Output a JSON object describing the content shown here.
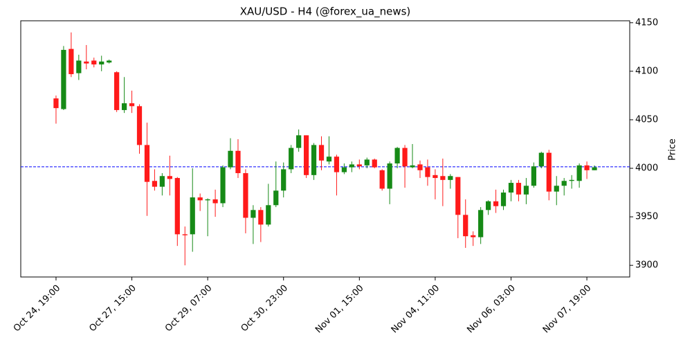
{
  "chart_data": {
    "type": "candlestick",
    "title": "XAU/USD - H4 (@forex_ua_news)",
    "y_label": "Price",
    "categories": [
      "Oct 24, 19:00",
      null,
      null,
      null,
      null,
      null,
      null,
      null,
      null,
      null,
      "Oct 27, 15:00",
      null,
      null,
      null,
      null,
      null,
      null,
      null,
      null,
      null,
      "Oct 29, 07:00",
      null,
      null,
      null,
      null,
      null,
      null,
      null,
      null,
      null,
      "Oct 30, 23:00",
      null,
      null,
      null,
      null,
      null,
      null,
      null,
      null,
      null,
      "Nov 01, 15:00",
      null,
      null,
      null,
      null,
      null,
      null,
      null,
      null,
      null,
      "Nov 04, 11:00",
      null,
      null,
      null,
      null,
      null,
      null,
      null,
      null,
      null,
      "Nov 06, 03:00",
      null,
      null,
      null,
      null,
      null,
      null,
      null,
      null,
      null,
      "Nov 07, 19:00",
      null
    ],
    "open": [
      4072,
      4061,
      4123,
      4098,
      4110,
      4111,
      4107,
      4109,
      4099,
      4060,
      4067,
      4064,
      4024,
      3987,
      3981,
      3992,
      3990,
      3932,
      3932,
      3970,
      3967,
      3968,
      3964,
      4001,
      4018,
      3995,
      3949,
      3957,
      3942,
      3962,
      3977,
      3999,
      4021,
      4034,
      3993,
      4024,
      4007,
      4012,
      3996,
      4001,
      4004,
      4003,
      4009,
      3998,
      3979,
      4005,
      4021,
      4001,
      4004,
      4001,
      3993,
      3992,
      3988,
      3991,
      3952,
      3931,
      3929,
      3957,
      3966,
      3961,
      3975,
      3985,
      3973,
      3982,
      4002,
      4016,
      3976,
      3982,
      3987,
      3987,
      4003,
      3998
    ],
    "high": [
      4075,
      4126,
      4140,
      4117,
      4127,
      4114,
      4116,
      4112,
      4100,
      4094,
      4080,
      4066,
      4047,
      3999,
      3995,
      4013,
      3991,
      3940,
      4000,
      3974,
      3969,
      3978,
      4003,
      4031,
      4030,
      3999,
      3962,
      3960,
      3984,
      4007,
      4006,
      4024,
      4040,
      4034,
      4026,
      4033,
      4033,
      4014,
      4005,
      4007,
      4009,
      4011,
      4010,
      3999,
      4007,
      4022,
      4024,
      4025,
      4008,
      4009,
      3999,
      4010,
      3994,
      3991,
      3968,
      3935,
      3960,
      3967,
      3978,
      3978,
      3988,
      3988,
      3990,
      4006,
      4017,
      4019,
      3992,
      3990,
      3993,
      4005,
      4007,
      4003
    ],
    "low": [
      4046,
      4060,
      4094,
      4091,
      4102,
      4104,
      4100,
      4108,
      4058,
      4057,
      4057,
      4015,
      3951,
      3977,
      3972,
      3972,
      3920,
      3900,
      3914,
      3956,
      3930,
      3950,
      3960,
      3999,
      3990,
      3933,
      3922,
      3924,
      3940,
      3960,
      3970,
      3995,
      4017,
      3990,
      3988,
      3998,
      4004,
      3972,
      3994,
      3996,
      3999,
      4000,
      4000,
      3977,
      3963,
      4000,
      3980,
      4000,
      3990,
      3982,
      3968,
      3961,
      3979,
      3928,
      3918,
      3920,
      3922,
      3952,
      3954,
      3957,
      3966,
      3966,
      3963,
      3980,
      4000,
      3967,
      3962,
      3972,
      3979,
      3980,
      3989,
      3998
    ],
    "close": [
      4062,
      4122,
      4097,
      4111,
      4108,
      4107,
      4110,
      4111,
      4060,
      4067,
      4064,
      4024,
      3986,
      3981,
      3992,
      3989,
      3932,
      3931,
      3970,
      3967,
      3968,
      3964,
      4001,
      4018,
      3995,
      3949,
      3957,
      3942,
      3962,
      3977,
      3999,
      4021,
      4034,
      3993,
      4024,
      4008,
      4012,
      3996,
      4001,
      4004,
      4002,
      4009,
      4001,
      3979,
      4005,
      4021,
      4002,
      4003,
      3998,
      3991,
      3990,
      3988,
      3992,
      3952,
      3930,
      3929,
      3957,
      3966,
      3961,
      3975,
      3985,
      3973,
      3982,
      4002,
      4016,
      3976,
      3982,
      3987,
      3988,
      4003,
      3998,
      4001
    ],
    "up_color": "#168a16",
    "down_color": "#ff1a1a",
    "xlim": [
      -4.65,
      75.65
    ],
    "ylim": [
      3888,
      4152
    ],
    "yticks": [
      3900,
      3950,
      4000,
      4050,
      4100,
      4150
    ],
    "reference_line": {
      "value": 4001.5,
      "color": "#0000ff"
    }
  }
}
